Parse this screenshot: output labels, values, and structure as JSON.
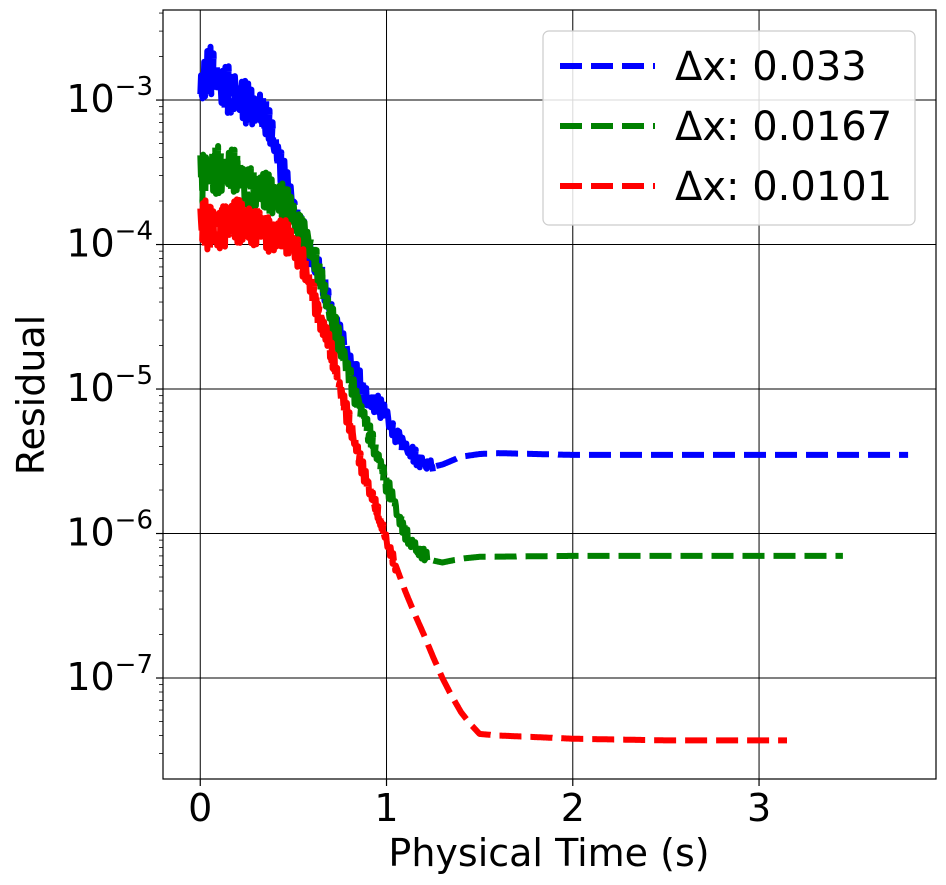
{
  "chart_data": {
    "type": "line",
    "title": "",
    "xlabel": "Physical Time (s)",
    "ylabel": "Residual",
    "yscale": "log",
    "xlim": [
      -0.2,
      3.95
    ],
    "ylim": [
      2e-08,
      0.0042
    ],
    "x_ticks": [
      0,
      1,
      2,
      3
    ],
    "x_tick_labels": [
      "0",
      "1",
      "2",
      "3"
    ],
    "y_ticks": [
      1e-07,
      1e-06,
      1e-05,
      0.0001,
      0.001
    ],
    "y_tick_labels": [
      {
        "base": "10",
        "exp": "−7"
      },
      {
        "base": "10",
        "exp": "−6"
      },
      {
        "base": "10",
        "exp": "−5"
      },
      {
        "base": "10",
        "exp": "−4"
      },
      {
        "base": "10",
        "exp": "−3"
      }
    ],
    "grid": true,
    "legend_position": "top-right",
    "line_style": "dashed",
    "series": [
      {
        "name": "Δx: 0.033",
        "color": "#0000ff",
        "x": [
          0.0,
          0.05,
          0.1,
          0.15,
          0.2,
          0.25,
          0.3,
          0.35,
          0.4,
          0.45,
          0.5,
          0.55,
          0.6,
          0.65,
          0.7,
          0.75,
          0.8,
          0.85,
          0.9,
          0.95,
          1.0,
          1.05,
          1.1,
          1.15,
          1.2,
          1.25,
          1.3,
          1.4,
          1.5,
          1.6,
          1.8,
          2.0,
          2.5,
          3.0,
          3.5,
          3.8
        ],
        "y": [
          0.0011,
          0.0015,
          0.0013,
          0.0012,
          0.0011,
          0.001,
          0.0009,
          0.0007,
          0.0005,
          0.0003,
          0.00018,
          0.00012,
          8e-05,
          5.5e-05,
          3.5e-05,
          2.4e-05,
          1.6e-05,
          1.15e-05,
          8.5e-06,
          7.5e-06,
          6.5e-06,
          5e-06,
          4e-06,
          3.4e-06,
          3e-06,
          2.9e-06,
          3e-06,
          3.4e-06,
          3.55e-06,
          3.6e-06,
          3.55e-06,
          3.5e-06,
          3.5e-06,
          3.5e-06,
          3.5e-06,
          3.5e-06
        ]
      },
      {
        "name": "Δx: 0.0167",
        "color": "#008000",
        "x": [
          0.0,
          0.05,
          0.1,
          0.15,
          0.2,
          0.25,
          0.3,
          0.35,
          0.4,
          0.45,
          0.5,
          0.55,
          0.6,
          0.65,
          0.7,
          0.75,
          0.8,
          0.85,
          0.9,
          0.95,
          1.0,
          1.05,
          1.1,
          1.15,
          1.2,
          1.25,
          1.3,
          1.4,
          1.5,
          2.0,
          2.5,
          3.0,
          3.45
        ],
        "y": [
          0.00029,
          0.00033,
          0.00034,
          0.00031,
          0.00029,
          0.00027,
          0.00025,
          0.00023,
          0.00021,
          0.00019,
          0.00016,
          0.00013,
          9e-05,
          5.5e-05,
          3.3e-05,
          2e-05,
          1.3e-05,
          8e-06,
          5e-06,
          3.5e-06,
          2.2e-06,
          1.5e-06,
          1.05e-06,
          8e-07,
          7e-07,
          6.5e-07,
          6.3e-07,
          6.7e-07,
          6.9e-07,
          7e-07,
          7e-07,
          7e-07,
          7e-07
        ]
      },
      {
        "name": "Δx: 0.0101",
        "color": "#ff0000",
        "x": [
          0.0,
          0.03,
          0.06,
          0.1,
          0.15,
          0.2,
          0.25,
          0.3,
          0.35,
          0.4,
          0.45,
          0.5,
          0.55,
          0.6,
          0.65,
          0.7,
          0.75,
          0.8,
          0.85,
          0.9,
          0.95,
          1.0,
          1.05,
          1.1,
          1.15,
          1.2,
          1.25,
          1.3,
          1.35,
          1.4,
          1.45,
          1.5,
          1.6,
          1.8,
          2.0,
          2.5,
          3.15
        ],
        "y": [
          0.00014,
          0.00013,
          0.00012,
          0.00014,
          0.00015,
          0.00014,
          0.00014,
          0.00013,
          0.00013,
          0.00012,
          0.00011,
          0.0001,
          7.5e-05,
          5e-05,
          3e-05,
          1.8e-05,
          1e-05,
          6e-06,
          3.5e-06,
          2.2e-06,
          1.4e-06,
          9e-07,
          6e-07,
          4e-07,
          2.8e-07,
          2e-07,
          1.4e-07,
          1e-07,
          7.5e-08,
          5.8e-08,
          4.8e-08,
          4.1e-08,
          4e-08,
          3.9e-08,
          3.8e-08,
          3.7e-08,
          3.7e-08
        ]
      }
    ]
  }
}
